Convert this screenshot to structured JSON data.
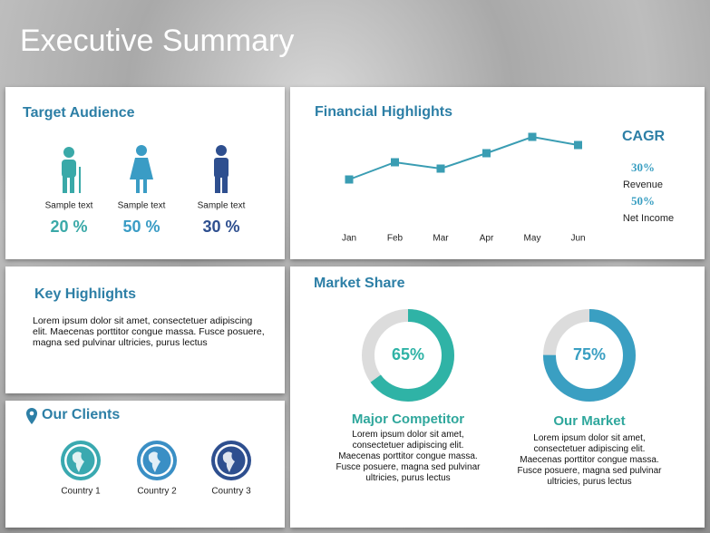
{
  "title": "Executive Summary",
  "target_audience": {
    "heading": "Target Audience",
    "groups": [
      {
        "label": "Sample text",
        "percent": "20 %"
      },
      {
        "label": "Sample text",
        "percent": "50 %"
      },
      {
        "label": "Sample text",
        "percent": "30 %"
      }
    ]
  },
  "financial_highlights": {
    "heading": "Financial Highlights",
    "chart_data": {
      "type": "line",
      "categories": [
        "Jan",
        "Feb",
        "Mar",
        "Apr",
        "May",
        "Jun"
      ],
      "values": [
        32,
        51,
        44,
        61,
        79,
        70
      ],
      "color": "#3a9db3"
    },
    "cagr": {
      "heading": "CAGR",
      "items": [
        {
          "value": "30%",
          "label": "Revenue"
        },
        {
          "value": "50%",
          "label": "Net Income"
        }
      ]
    }
  },
  "key_highlights": {
    "heading": "Key Highlights",
    "text": "Lorem ipsum dolor sit amet, consectetuer adipiscing elit. Maecenas porttitor congue massa. Fusce posuere, magna sed pulvinar ultricies, purus lectus"
  },
  "clients": {
    "heading": "Our Clients",
    "items": [
      "Country 1",
      "Country 2",
      "Country 3"
    ]
  },
  "market_share": {
    "heading": "Market Share",
    "chart_data": [
      {
        "type": "donut",
        "title": "Major Competitor",
        "values": [
          65
        ],
        "value_labels": [
          "65%"
        ],
        "color": "#2fb3a6",
        "description": "Lorem ipsum dolor sit amet, consectetuer adipiscing elit. Maecenas porttitor congue massa. Fusce posuere, magna sed pulvinar ultricies, purus lectus"
      },
      {
        "type": "donut",
        "title": "Our Market",
        "values": [
          75
        ],
        "value_labels": [
          "75%"
        ],
        "color": "#3a9fc2",
        "description": "Lorem ipsum dolor sit amet, consectetuer adipiscing elit. Maecenas porttitor congue massa. Fusce posuere, magna sed pulvinar ultricies, purus lectus"
      }
    ]
  }
}
